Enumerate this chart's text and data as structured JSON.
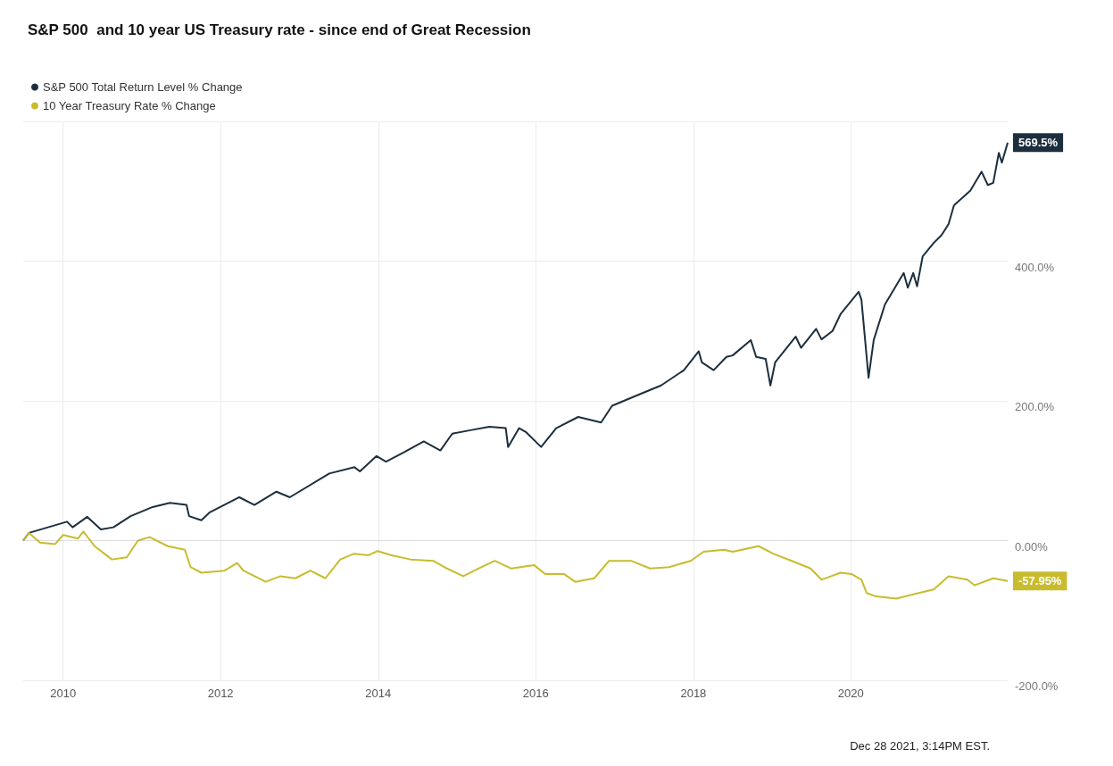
{
  "chart_data": {
    "type": "line",
    "title": "S&P 500  and 10 year US Treasury rate - since end of Great Recession",
    "xlim": [
      "2009-06-30",
      "2021-12-28"
    ],
    "xticks": [
      "2010",
      "2012",
      "2014",
      "2016",
      "2018",
      "2020"
    ],
    "ylim": [
      -200,
      600
    ],
    "yticks": [
      {
        "value": -200,
        "label": "-200.0%"
      },
      {
        "value": 0,
        "label": "0.00%"
      },
      {
        "value": 200,
        "label": "200.0%"
      },
      {
        "value": 400,
        "label": "400.0%"
      },
      {
        "value": 600,
        "label": null
      }
    ],
    "grid": true,
    "legend": "top left",
    "annotations": [
      "Dec 28 2021, 3:14PM EST."
    ],
    "series": [
      {
        "name": "S&P 500 Total Return Level % Change",
        "color": "#1c2f3e",
        "x": [
          "2009-06-30",
          "2009-07-27",
          "2009-10-23",
          "2010-01-19",
          "2010-02-14",
          "2010-04-23",
          "2010-06-25",
          "2010-08-22",
          "2010-11-10",
          "2011-02-20",
          "2011-05-11",
          "2011-07-27",
          "2011-08-08",
          "2011-10-04",
          "2011-11-10",
          "2012-03-28",
          "2012-06-06",
          "2012-09-16",
          "2012-11-17",
          "2013-05-19",
          "2013-09-13",
          "2013-10-08",
          "2013-12-24",
          "2014-02-06",
          "2014-04-28",
          "2014-07-31",
          "2014-10-16",
          "2014-12-10",
          "2015-03-04",
          "2015-05-31",
          "2015-08-15",
          "2015-08-26",
          "2015-10-16",
          "2015-11-18",
          "2016-01-26",
          "2016-04-05",
          "2016-07-16",
          "2016-10-30",
          "2016-12-20",
          "2017-04-23",
          "2017-08-04",
          "2017-11-18",
          "2018-01-26",
          "2018-02-09",
          "2018-04-05",
          "2018-06-03",
          "2018-07-02",
          "2018-09-24",
          "2018-10-19",
          "2018-12-02",
          "2018-12-24",
          "2019-01-15",
          "2019-04-20",
          "2019-05-15",
          "2019-07-24",
          "2019-08-18",
          "2019-10-08",
          "2019-11-14",
          "2020-02-06",
          "2020-02-19",
          "2020-03-23",
          "2020-04-16",
          "2020-06-07",
          "2020-09-02",
          "2020-09-21",
          "2020-10-16",
          "2020-11-03",
          "2020-11-29",
          "2021-01-19",
          "2021-02-24",
          "2021-03-29",
          "2021-04-23",
          "2021-07-08",
          "2021-08-29",
          "2021-09-27",
          "2021-10-22",
          "2021-11-17",
          "2021-12-01",
          "2021-12-28"
        ],
        "values": [
          0,
          11,
          19,
          27,
          19,
          34,
          16,
          19,
          35,
          48,
          54,
          51,
          35,
          29,
          40,
          62,
          51,
          70,
          62,
          96,
          105,
          99,
          121,
          113,
          126,
          142,
          129,
          153,
          158,
          163,
          161,
          134,
          161,
          155,
          134,
          161,
          177,
          169,
          193,
          209,
          222,
          244,
          271,
          255,
          244,
          263,
          265,
          287,
          263,
          260,
          222,
          255,
          292,
          276,
          303,
          288,
          300,
          324,
          356,
          345,
          233,
          287,
          338,
          383,
          362,
          383,
          364,
          407,
          426,
          437,
          453,
          480,
          501,
          528,
          509,
          512,
          555,
          541,
          569.5
        ],
        "value_labels": [
          null,
          null,
          null,
          null,
          null,
          null,
          null,
          null,
          null,
          null,
          null,
          null,
          null,
          null,
          null,
          null,
          null,
          null,
          null,
          null,
          null,
          null,
          null,
          null,
          null,
          null,
          null,
          null,
          null,
          null,
          null,
          null,
          null,
          null,
          null,
          null,
          null,
          null,
          null,
          null,
          null,
          null,
          null,
          null,
          null,
          null,
          null,
          null,
          null,
          null,
          null,
          null,
          null,
          null,
          null,
          null,
          null,
          null,
          null,
          null,
          null,
          null,
          null,
          null,
          null,
          null,
          null,
          null,
          null,
          null,
          null,
          null,
          null,
          null,
          null,
          null,
          null,
          null,
          "569.5%"
        ]
      },
      {
        "name": "10 Year Treasury Rate % Change",
        "color": "#c8bc2e",
        "x": [
          "2009-06-30",
          "2009-07-27",
          "2009-09-16",
          "2009-11-25",
          "2010-01-01",
          "2010-03-11",
          "2010-04-05",
          "2010-05-27",
          "2010-08-15",
          "2010-10-23",
          "2010-12-14",
          "2011-02-06",
          "2011-05-01",
          "2011-07-19",
          "2011-08-15",
          "2011-10-04",
          "2012-01-19",
          "2012-03-18",
          "2012-04-16",
          "2012-07-28",
          "2012-10-05",
          "2012-12-13",
          "2013-02-20",
          "2013-05-01",
          "2013-07-09",
          "2013-09-09",
          "2013-11-17",
          "2013-12-28",
          "2014-03-04",
          "2014-05-31",
          "2014-09-13",
          "2014-11-03",
          "2015-01-30",
          "2015-04-10",
          "2015-06-25",
          "2015-09-10",
          "2015-12-24",
          "2016-02-14",
          "2016-05-12",
          "2016-07-02",
          "2016-09-28",
          "2016-12-06",
          "2017-03-18",
          "2017-06-14",
          "2017-09-10",
          "2017-12-20",
          "2018-02-17",
          "2018-05-23",
          "2018-07-02",
          "2018-10-30",
          "2019-01-08",
          "2019-04-02",
          "2019-06-28",
          "2019-08-18",
          "2019-11-14",
          "2020-01-05",
          "2020-02-19",
          "2020-03-14",
          "2020-04-27",
          "2020-07-31",
          "2020-11-10",
          "2021-01-19",
          "2021-03-29",
          "2021-06-24",
          "2021-07-27",
          "2021-10-22",
          "2021-12-28"
        ],
        "values": [
          0,
          11,
          -3,
          -5,
          8,
          3,
          13,
          -8,
          -27,
          -24,
          0,
          5,
          -8,
          -13,
          -38,
          -46,
          -43,
          -32,
          -43,
          -59,
          -51,
          -54,
          -43,
          -54,
          -27,
          -19,
          -21,
          -15,
          -21,
          -27,
          -29,
          -38,
          -51,
          -40,
          -29,
          -40,
          -35,
          -48,
          -48,
          -59,
          -54,
          -29,
          -29,
          -40,
          -38,
          -29,
          -16,
          -13,
          -16,
          -8,
          -19,
          -29,
          -40,
          -56,
          -46,
          -48,
          -56,
          -75,
          -80,
          -83,
          -75,
          -70,
          -51,
          -56,
          -64,
          -54,
          -57.95
        ],
        "value_labels": [
          null,
          null,
          null,
          null,
          null,
          null,
          null,
          null,
          null,
          null,
          null,
          null,
          null,
          null,
          null,
          null,
          null,
          null,
          null,
          null,
          null,
          null,
          null,
          null,
          null,
          null,
          null,
          null,
          null,
          null,
          null,
          null,
          null,
          null,
          null,
          null,
          null,
          null,
          null,
          null,
          null,
          null,
          null,
          null,
          null,
          null,
          null,
          null,
          null,
          null,
          null,
          null,
          null,
          null,
          null,
          null,
          null,
          null,
          null,
          null,
          null,
          null,
          null,
          null,
          null,
          null,
          "-57.95%"
        ]
      }
    ]
  }
}
